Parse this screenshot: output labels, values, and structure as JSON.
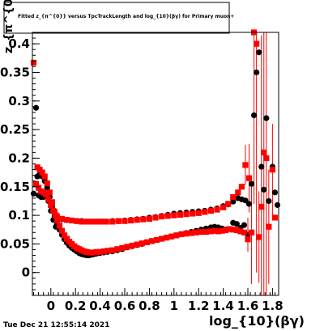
{
  "chart_data": {
    "type": "scatter",
    "title": "Fitted  z_{π^{0}} versus TpcTrackLength and log_{10}(βγ) for Primary muon+",
    "xlabel": "log_{10}(βγ)",
    "ylabel": "z_{π^{0}}",
    "xlim": [
      -0.15,
      1.85
    ],
    "ylim": [
      -0.04,
      0.42
    ],
    "grid": false,
    "x_ticks": [
      {
        "v": 0,
        "label": "0"
      },
      {
        "v": 0.2,
        "label": "0.2"
      },
      {
        "v": 0.4,
        "label": "0.4"
      },
      {
        "v": 0.6,
        "label": "0.6"
      },
      {
        "v": 0.8,
        "label": "0.8"
      },
      {
        "v": 1.0,
        "label": "1"
      },
      {
        "v": 1.2,
        "label": "1.2"
      },
      {
        "v": 1.4,
        "label": "1.4"
      },
      {
        "v": 1.6,
        "label": "1.6"
      },
      {
        "v": 1.8,
        "label": "1.8"
      }
    ],
    "y_ticks": [
      {
        "v": 0,
        "label": "0"
      },
      {
        "v": 0.05,
        "label": "0.05"
      },
      {
        "v": 0.1,
        "label": "0.1"
      },
      {
        "v": 0.15,
        "label": "0.15"
      },
      {
        "v": 0.2,
        "label": "0.2"
      },
      {
        "v": 0.25,
        "label": "0.25"
      },
      {
        "v": 0.3,
        "label": "0.3"
      },
      {
        "v": 0.35,
        "label": "0.35"
      },
      {
        "v": 0.4,
        "label": "0.4"
      }
    ],
    "series": [
      {
        "color": "#000000",
        "marker": "circle",
        "points": [
          [
            -0.14,
            0.138
          ],
          [
            -0.12,
            0.288
          ],
          [
            -0.1,
            0.135
          ],
          [
            -0.08,
            0.132
          ],
          [
            -0.06,
            0.132
          ],
          [
            -0.04,
            0.135
          ],
          [
            -0.02,
            0.125
          ],
          [
            0.0,
            0.108
          ],
          [
            0.02,
            0.092
          ],
          [
            0.04,
            0.08
          ],
          [
            -0.11,
            0.168
          ],
          [
            -0.09,
            0.172
          ],
          [
            -0.07,
            0.168
          ],
          [
            -0.05,
            0.16
          ],
          [
            -0.03,
            0.148
          ],
          [
            -0.01,
            0.132
          ],
          [
            0.01,
            0.115
          ],
          [
            0.03,
            0.098
          ],
          [
            0.05,
            0.085
          ],
          [
            0.07,
            0.075
          ],
          [
            0.09,
            0.066
          ],
          [
            0.11,
            0.058
          ],
          [
            0.13,
            0.052
          ],
          [
            0.15,
            0.047
          ],
          [
            0.17,
            0.043
          ],
          [
            0.19,
            0.04
          ],
          [
            0.21,
            0.037
          ],
          [
            0.23,
            0.034
          ],
          [
            0.25,
            0.032
          ],
          [
            0.27,
            0.031
          ],
          [
            0.29,
            0.03
          ],
          [
            0.31,
            0.03
          ],
          [
            0.33,
            0.031
          ],
          [
            0.35,
            0.032
          ],
          [
            0.37,
            0.033
          ],
          [
            0.4,
            0.034
          ],
          [
            0.43,
            0.035
          ],
          [
            0.46,
            0.036
          ],
          [
            0.5,
            0.037
          ],
          [
            0.54,
            0.039
          ],
          [
            0.58,
            0.041
          ],
          [
            0.62,
            0.044
          ],
          [
            0.66,
            0.046
          ],
          [
            0.7,
            0.048
          ],
          [
            0.74,
            0.05
          ],
          [
            0.78,
            0.053
          ],
          [
            0.82,
            0.055
          ],
          [
            0.86,
            0.057
          ],
          [
            0.9,
            0.059
          ],
          [
            0.94,
            0.061
          ],
          [
            0.98,
            0.063
          ],
          [
            1.02,
            0.065
          ],
          [
            1.06,
            0.067
          ],
          [
            1.1,
            0.069
          ],
          [
            1.14,
            0.071
          ],
          [
            1.18,
            0.073
          ],
          [
            1.22,
            0.075
          ],
          [
            1.26,
            0.077
          ],
          [
            1.3,
            0.079
          ],
          [
            1.33,
            0.08
          ],
          [
            1.36,
            0.079
          ],
          [
            1.39,
            0.077
          ],
          [
            1.42,
            0.075
          ],
          [
            1.45,
            0.076
          ],
          [
            1.48,
            0.087
          ],
          [
            1.51,
            0.085
          ],
          [
            1.54,
            0.078
          ],
          [
            1.57,
            0.083
          ],
          [
            1.6,
            0.066
          ],
          [
            0.05,
            0.092
          ],
          [
            0.09,
            0.093
          ],
          [
            0.13,
            0.092
          ],
          [
            0.17,
            0.091
          ],
          [
            0.21,
            0.09
          ],
          [
            0.25,
            0.09
          ],
          [
            0.29,
            0.089
          ],
          [
            0.33,
            0.089
          ],
          [
            0.37,
            0.089
          ],
          [
            0.41,
            0.089
          ],
          [
            0.45,
            0.089
          ],
          [
            0.5,
            0.09
          ],
          [
            0.55,
            0.09
          ],
          [
            0.6,
            0.091
          ],
          [
            0.65,
            0.092
          ],
          [
            0.7,
            0.093
          ],
          [
            0.75,
            0.094
          ],
          [
            0.8,
            0.096
          ],
          [
            0.85,
            0.097
          ],
          [
            0.9,
            0.099
          ],
          [
            0.95,
            0.101
          ],
          [
            1.0,
            0.103
          ],
          [
            1.05,
            0.104
          ],
          [
            1.1,
            0.105
          ],
          [
            1.15,
            0.106
          ],
          [
            1.2,
            0.107
          ],
          [
            1.25,
            0.108
          ],
          [
            1.3,
            0.11
          ],
          [
            1.35,
            0.112
          ],
          [
            1.4,
            0.116
          ],
          [
            1.44,
            0.119
          ],
          [
            1.48,
            0.124
          ],
          [
            1.52,
            0.13
          ],
          [
            1.55,
            0.128
          ],
          [
            1.58,
            0.126
          ],
          [
            1.61,
            0.12
          ],
          [
            1.63,
            0.155
          ],
          [
            1.65,
            0.275
          ],
          [
            1.67,
            0.35
          ],
          [
            1.69,
            0.385
          ],
          [
            1.71,
            0.185
          ],
          [
            1.73,
            0.145
          ],
          [
            1.75,
            0.27
          ],
          [
            1.77,
            0.125
          ],
          [
            1.8,
            0.185
          ],
          [
            1.82,
            0.14
          ],
          [
            1.84,
            0.118
          ]
        ]
      },
      {
        "color": "#ff0000",
        "marker": "square",
        "points": [
          [
            -0.14,
            0.367
          ],
          [
            -0.12,
            0.155
          ],
          [
            -0.1,
            0.148
          ],
          [
            -0.08,
            0.142
          ],
          [
            -0.06,
            0.14
          ],
          [
            -0.04,
            0.137
          ],
          [
            -0.02,
            0.128
          ],
          [
            0.0,
            0.118
          ],
          [
            0.02,
            0.108
          ],
          [
            0.04,
            0.1
          ],
          [
            -0.11,
            0.184
          ],
          [
            -0.09,
            0.18
          ],
          [
            -0.07,
            0.175
          ],
          [
            -0.05,
            0.168
          ],
          [
            -0.03,
            0.156
          ],
          [
            -0.01,
            0.14
          ],
          [
            0.01,
            0.123
          ],
          [
            0.03,
            0.106
          ],
          [
            0.05,
            0.092
          ],
          [
            0.07,
            0.082
          ],
          [
            0.09,
            0.073
          ],
          [
            0.11,
            0.065
          ],
          [
            0.13,
            0.059
          ],
          [
            0.15,
            0.054
          ],
          [
            0.17,
            0.05
          ],
          [
            0.19,
            0.046
          ],
          [
            0.21,
            0.043
          ],
          [
            0.23,
            0.041
          ],
          [
            0.25,
            0.039
          ],
          [
            0.27,
            0.037
          ],
          [
            0.29,
            0.036
          ],
          [
            0.31,
            0.035
          ],
          [
            0.33,
            0.035
          ],
          [
            0.35,
            0.035
          ],
          [
            0.37,
            0.036
          ],
          [
            0.4,
            0.036
          ],
          [
            0.43,
            0.037
          ],
          [
            0.46,
            0.038
          ],
          [
            0.5,
            0.039
          ],
          [
            0.54,
            0.041
          ],
          [
            0.58,
            0.043
          ],
          [
            0.62,
            0.045
          ],
          [
            0.66,
            0.047
          ],
          [
            0.7,
            0.049
          ],
          [
            0.74,
            0.051
          ],
          [
            0.78,
            0.053
          ],
          [
            0.82,
            0.055
          ],
          [
            0.86,
            0.057
          ],
          [
            0.9,
            0.059
          ],
          [
            0.94,
            0.061
          ],
          [
            0.98,
            0.063
          ],
          [
            1.02,
            0.065
          ],
          [
            1.06,
            0.067
          ],
          [
            1.1,
            0.068
          ],
          [
            1.14,
            0.069
          ],
          [
            1.18,
            0.07
          ],
          [
            1.22,
            0.071
          ],
          [
            1.26,
            0.071
          ],
          [
            1.3,
            0.072
          ],
          [
            1.33,
            0.073
          ],
          [
            1.36,
            0.072
          ],
          [
            1.39,
            0.073
          ],
          [
            1.42,
            0.074
          ],
          [
            1.45,
            0.076
          ],
          [
            1.48,
            0.075
          ],
          [
            1.51,
            0.074
          ],
          [
            1.54,
            0.072
          ],
          [
            1.57,
            0.07
          ],
          [
            1.6,
            0.058
          ],
          [
            0.05,
            0.098
          ],
          [
            0.09,
            0.094
          ],
          [
            0.13,
            0.092
          ],
          [
            0.17,
            0.091
          ],
          [
            0.21,
            0.09
          ],
          [
            0.25,
            0.089
          ],
          [
            0.29,
            0.089
          ],
          [
            0.33,
            0.089
          ],
          [
            0.37,
            0.089
          ],
          [
            0.41,
            0.089
          ],
          [
            0.45,
            0.089
          ],
          [
            0.5,
            0.089
          ],
          [
            0.55,
            0.09
          ],
          [
            0.6,
            0.09
          ],
          [
            0.65,
            0.091
          ],
          [
            0.7,
            0.092
          ],
          [
            0.75,
            0.093
          ],
          [
            0.8,
            0.094
          ],
          [
            0.85,
            0.096
          ],
          [
            0.9,
            0.098
          ],
          [
            0.95,
            0.099
          ],
          [
            1.0,
            0.1
          ],
          [
            1.05,
            0.101
          ],
          [
            1.1,
            0.102
          ],
          [
            1.15,
            0.103
          ],
          [
            1.2,
            0.104
          ],
          [
            1.25,
            0.106
          ],
          [
            1.3,
            0.108
          ],
          [
            1.35,
            0.11
          ],
          [
            1.4,
            0.114
          ],
          [
            1.44,
            0.12
          ],
          [
            1.48,
            0.132
          ],
          [
            1.52,
            0.14
          ],
          [
            1.55,
            0.15
          ],
          [
            1.58,
            0.188
          ],
          [
            1.61,
            0.165
          ],
          [
            1.63,
            0.07
          ],
          [
            1.65,
            0.42
          ],
          [
            1.67,
            0.4
          ],
          [
            1.69,
            0.062
          ],
          [
            1.71,
            0.115
          ],
          [
            1.73,
            0.21
          ],
          [
            1.75,
            0.2
          ],
          [
            1.77,
            0.08
          ],
          [
            1.8,
            0.18
          ],
          [
            1.82,
            0.096
          ]
        ]
      }
    ],
    "error_bars": [
      [
        1.58,
        0.188,
        0.035
      ],
      [
        1.6,
        0.066,
        0.03
      ],
      [
        1.61,
        0.165,
        0.06
      ],
      [
        1.63,
        0.07,
        0.09
      ],
      [
        1.65,
        0.42,
        0.3
      ],
      [
        1.67,
        0.4,
        0.4
      ],
      [
        1.69,
        0.062,
        0.08
      ],
      [
        1.71,
        0.115,
        0.3
      ],
      [
        1.73,
        0.21,
        0.35
      ],
      [
        1.75,
        0.2,
        0.4
      ],
      [
        1.77,
        0.08,
        0.1
      ],
      [
        1.8,
        0.18,
        0.08
      ]
    ]
  },
  "footer": {
    "timestamp": "Tue Dec 21 12:55:14 2021"
  }
}
